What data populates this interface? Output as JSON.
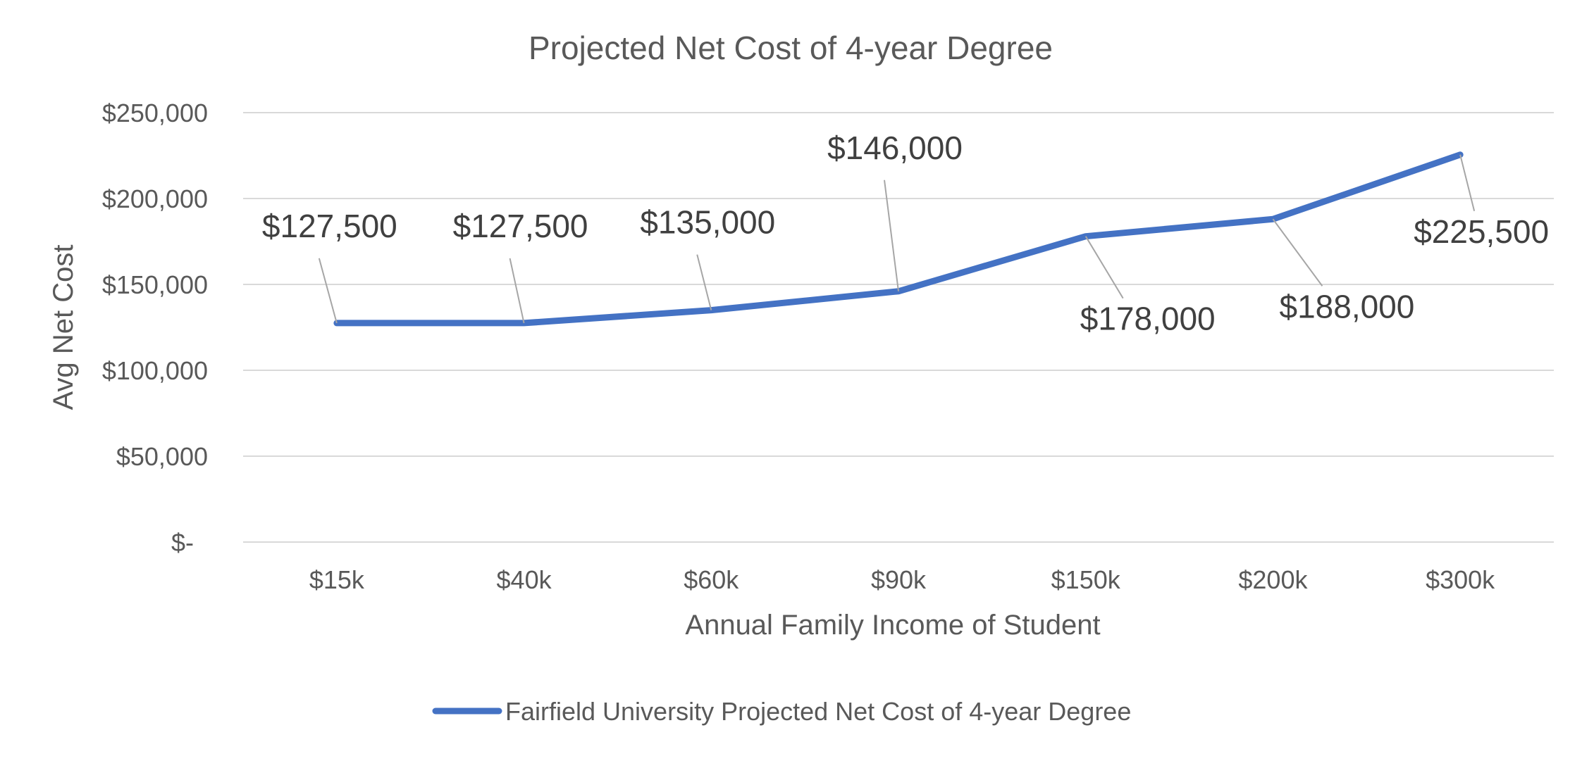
{
  "chart_data": {
    "type": "line",
    "title": "Projected Net Cost of 4-year Degree",
    "xlabel": "Annual Family Income of Student",
    "ylabel": "Avg Net Cost",
    "categories": [
      "$15k",
      "$40k",
      "$60k",
      "$90k",
      "$150k",
      "$200k",
      "$300k"
    ],
    "series": [
      {
        "name": "Fairfield University Projected Net Cost of 4-year Degree",
        "values": [
          127500,
          127500,
          135000,
          146000,
          178000,
          188000,
          225500
        ],
        "data_labels": [
          "$127,500",
          "$127,500",
          "$135,000",
          "$146,000",
          "$178,000",
          "$188,000",
          "$225,500"
        ],
        "color": "#4472c4"
      }
    ],
    "ylim": [
      0,
      250000
    ],
    "yticks": [
      0,
      50000,
      100000,
      150000,
      200000,
      250000
    ],
    "ytick_labels": [
      "$-",
      "$50,000",
      "$100,000",
      "$150,000",
      "$200,000",
      "$250,000"
    ],
    "grid": true,
    "legend_position": "bottom",
    "colors": {
      "text": "#595959",
      "data_label": "#404040",
      "gridline": "#d9d9d9",
      "leader": "#a6a6a6"
    }
  }
}
